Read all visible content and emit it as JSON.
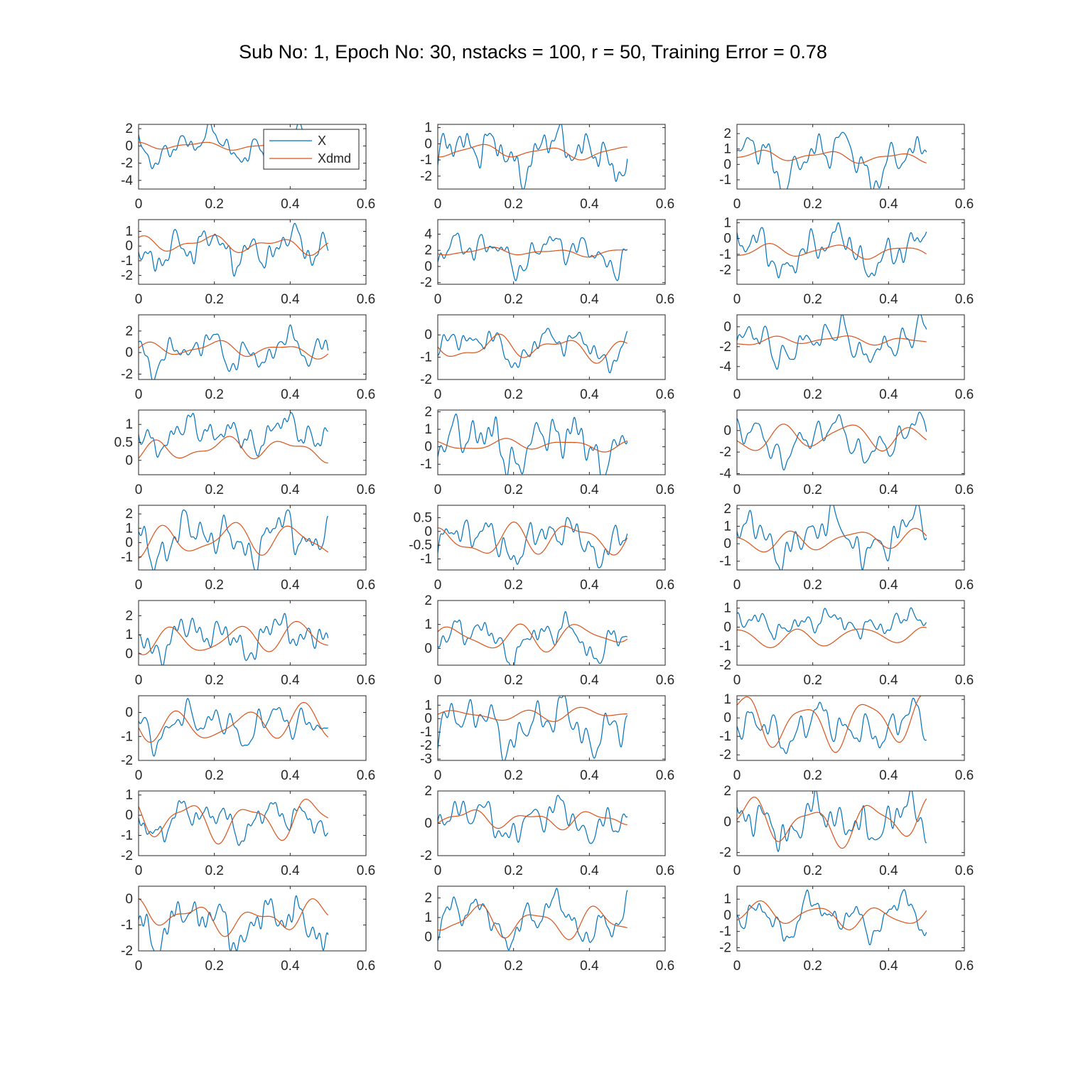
{
  "title": "Sub No: 1, Epoch No: 30, nstacks = 100, r = 50, Training Error = 0.78",
  "colors": {
    "x": "#0072BD",
    "xdmd": "#D95319",
    "axis": "#262626"
  },
  "legend": {
    "placement": "top-right of first panel",
    "labels": [
      "X",
      "Xdmd"
    ]
  },
  "chart_data": {
    "type": "line",
    "title": "Sub No: 1, Epoch No: 30, nstacks = 100, r = 50, Training Error = 0.78",
    "layout": "9 rows x 3 columns",
    "xlim": [
      0,
      0.6
    ],
    "xticks": [
      0,
      0.2,
      0.4,
      0.6
    ],
    "xtick_labels": [
      "0",
      "0.2",
      "0.4",
      "0.6"
    ],
    "x_range_of_series": [
      0,
      0.5
    ],
    "series_names": [
      "X",
      "Xdmd"
    ],
    "grid": false,
    "panels": [
      {
        "ylim": [
          -5,
          2.5
        ],
        "yticks": [
          2,
          0,
          -2,
          -4
        ],
        "ytick_labels": [
          "2",
          "0",
          "-2",
          "-4"
        ],
        "x_mean": 0.0,
        "x_amp": 1.1,
        "xdmd_mean": 0.0,
        "xdmd_amp": 0.3,
        "x_range": [
          -3.8,
          2.5
        ],
        "legend": true
      },
      {
        "ylim": [
          -2.8,
          1.2
        ],
        "yticks": [
          1,
          0,
          -1,
          -2
        ],
        "ytick_labels": [
          "1",
          "0",
          "-1",
          "-2"
        ],
        "x_mean": -0.5,
        "x_amp": 1.0,
        "xdmd_mean": -0.5,
        "xdmd_amp": 0.3,
        "x_range": [
          -2.8,
          1.2
        ]
      },
      {
        "ylim": [
          -1.6,
          2.6
        ],
        "yticks": [
          2,
          1,
          0,
          -1
        ],
        "ytick_labels": [
          "2",
          "1",
          "0",
          "-1"
        ],
        "x_mean": 0.4,
        "x_amp": 1.2,
        "xdmd_mean": 0.5,
        "xdmd_amp": 0.3,
        "x_range": [
          -1.6,
          2.6
        ]
      },
      {
        "ylim": [
          -2.6,
          1.8
        ],
        "yticks": [
          1,
          0,
          -1,
          -2
        ],
        "ytick_labels": [
          "1",
          "0",
          "-1",
          "-2"
        ],
        "x_mean": -0.2,
        "x_amp": 0.9,
        "xdmd_mean": 0.1,
        "xdmd_amp": 0.5,
        "x_range": [
          -2.6,
          1.8
        ]
      },
      {
        "ylim": [
          -2.2,
          5.8
        ],
        "yticks": [
          4,
          2,
          0,
          -2
        ],
        "ytick_labels": [
          "4",
          "2",
          "0",
          "-2"
        ],
        "x_mean": 1.8,
        "x_amp": 1.6,
        "xdmd_mean": 1.8,
        "xdmd_amp": 0.5,
        "x_range": [
          -2.2,
          5.8
        ]
      },
      {
        "ylim": [
          -2.9,
          1.2
        ],
        "yticks": [
          1,
          0,
          -1,
          -2
        ],
        "ytick_labels": [
          "1",
          "0",
          "-1",
          "-2"
        ],
        "x_mean": -0.8,
        "x_amp": 1.0,
        "xdmd_mean": -0.8,
        "xdmd_amp": 0.3,
        "x_range": [
          -2.9,
          1.2
        ]
      },
      {
        "ylim": [
          -2.5,
          3.5
        ],
        "yticks": [
          2,
          0,
          -2
        ],
        "ytick_labels": [
          "2",
          "0",
          "-2"
        ],
        "x_mean": 0.1,
        "x_amp": 1.3,
        "xdmd_mean": 0.3,
        "xdmd_amp": 0.5,
        "x_range": [
          -2.5,
          3.5
        ]
      },
      {
        "ylim": [
          -2,
          0.9
        ],
        "yticks": [
          0,
          -1,
          -2
        ],
        "ytick_labels": [
          "0",
          "-1",
          "-2"
        ],
        "x_mean": -0.5,
        "x_amp": 0.6,
        "xdmd_mean": -0.6,
        "xdmd_amp": 0.4,
        "x_range": [
          -2,
          0.9
        ]
      },
      {
        "ylim": [
          -5.3,
          1.2
        ],
        "yticks": [
          0,
          -2,
          -4
        ],
        "ytick_labels": [
          "0",
          "-2",
          "-4"
        ],
        "x_mean": -1.6,
        "x_amp": 1.2,
        "xdmd_mean": -1.4,
        "xdmd_amp": 0.4,
        "x_range": [
          -5.3,
          1.2
        ]
      },
      {
        "ylim": [
          -0.4,
          1.4
        ],
        "yticks": [
          1,
          0.5,
          0
        ],
        "ytick_labels": [
          "1",
          "0.5",
          "0"
        ],
        "x_mean": 0.75,
        "x_amp": 0.3,
        "xdmd_mean": 0.3,
        "xdmd_amp": 0.3,
        "x_range": [
          -0.4,
          1.4
        ]
      },
      {
        "ylim": [
          -1.6,
          2.1
        ],
        "yticks": [
          2,
          1,
          0,
          -1
        ],
        "ytick_labels": [
          "2",
          "1",
          "0",
          "-1"
        ],
        "x_mean": 0.2,
        "x_amp": 1.0,
        "xdmd_mean": 0.1,
        "xdmd_amp": 0.2,
        "x_range": [
          -1.6,
          2.1
        ]
      },
      {
        "ylim": [
          -4.1,
          1.9
        ],
        "yticks": [
          0,
          -2,
          -4
        ],
        "ytick_labels": [
          "0",
          "-2",
          "-4"
        ],
        "x_mean": -0.9,
        "x_amp": 1.3,
        "xdmd_mean": -0.6,
        "xdmd_amp": 0.9,
        "x_range": [
          -4.1,
          1.9
        ]
      },
      {
        "ylim": [
          -1.9,
          2.6
        ],
        "yticks": [
          2,
          1,
          0,
          -1
        ],
        "ytick_labels": [
          "2",
          "1",
          "0",
          "-1"
        ],
        "x_mean": 0.3,
        "x_amp": 1.1,
        "xdmd_mean": 0.2,
        "xdmd_amp": 0.9,
        "x_range": [
          -1.9,
          2.6
        ]
      },
      {
        "ylim": [
          -1.4,
          0.95
        ],
        "yticks": [
          0.5,
          0,
          -0.5,
          -1
        ],
        "ytick_labels": [
          "0.5",
          "0",
          "-0.5",
          "-1"
        ],
        "x_mean": -0.3,
        "x_amp": 0.5,
        "xdmd_mean": -0.3,
        "xdmd_amp": 0.5,
        "x_range": [
          -1.4,
          0.95
        ]
      },
      {
        "ylim": [
          -1.5,
          2.2
        ],
        "yticks": [
          2,
          1,
          0,
          -1
        ],
        "ytick_labels": [
          "2",
          "1",
          "0",
          "-1"
        ],
        "x_mean": 0.4,
        "x_amp": 0.9,
        "xdmd_mean": 0.2,
        "xdmd_amp": 0.6,
        "x_range": [
          -1.5,
          2.2
        ]
      },
      {
        "ylim": [
          -0.6,
          2.8
        ],
        "yticks": [
          2,
          1,
          0
        ],
        "ytick_labels": [
          "2",
          "1",
          "0"
        ],
        "x_mean": 0.9,
        "x_amp": 0.7,
        "xdmd_mean": 0.8,
        "xdmd_amp": 0.5,
        "x_range": [
          -0.6,
          2.8
        ]
      },
      {
        "ylim": [
          -0.7,
          2
        ],
        "yticks": [
          2,
          1,
          0
        ],
        "ytick_labels": [
          "2",
          "1",
          "0"
        ],
        "x_mean": 0.4,
        "x_amp": 0.6,
        "xdmd_mean": 0.5,
        "xdmd_amp": 0.4,
        "x_range": [
          -0.7,
          2
        ]
      },
      {
        "ylim": [
          -2,
          1.4
        ],
        "yticks": [
          1,
          0,
          -1,
          -2
        ],
        "ytick_labels": [
          "1",
          "0",
          "-1",
          "-2"
        ],
        "x_mean": 0.2,
        "x_amp": 0.5,
        "xdmd_mean": -0.5,
        "xdmd_amp": 0.4,
        "x_range": [
          -2,
          1.4
        ]
      },
      {
        "ylim": [
          -2,
          0.7
        ],
        "yticks": [
          0,
          -1,
          -2
        ],
        "ytick_labels": [
          "0",
          "-1",
          "-2"
        ],
        "x_mean": -0.5,
        "x_amp": 0.5,
        "xdmd_mean": -0.5,
        "xdmd_amp": 0.6,
        "x_range": [
          -2,
          0.7
        ]
      },
      {
        "ylim": [
          -3.1,
          1.7
        ],
        "yticks": [
          1,
          0,
          -1,
          -2,
          -3
        ],
        "ytick_labels": [
          "1",
          "0",
          "-1",
          "-2",
          "-3"
        ],
        "x_mean": -0.5,
        "x_amp": 1.2,
        "xdmd_mean": 0.3,
        "xdmd_amp": 0.4,
        "x_range": [
          -3.1,
          1.7
        ]
      },
      {
        "ylim": [
          -2.3,
          1.2
        ],
        "yticks": [
          1,
          0,
          -1,
          -2
        ],
        "ytick_labels": [
          "1",
          "0",
          "-1",
          "-2"
        ],
        "x_mean": -0.5,
        "x_amp": 0.9,
        "xdmd_mean": -0.2,
        "xdmd_amp": 0.9,
        "x_range": [
          -2.3,
          1.2
        ]
      },
      {
        "ylim": [
          -2,
          1.2
        ],
        "yticks": [
          1,
          0,
          -1,
          -2
        ],
        "ytick_labels": [
          "1",
          "0",
          "-1",
          "-2"
        ],
        "x_mean": -0.2,
        "x_amp": 0.6,
        "xdmd_mean": -0.2,
        "xdmd_amp": 0.7,
        "x_range": [
          -2,
          1.2
        ]
      },
      {
        "ylim": [
          -2,
          2
        ],
        "yticks": [
          2,
          0,
          -2
        ],
        "ytick_labels": [
          "2",
          "0",
          "-2"
        ],
        "x_mean": 0.2,
        "x_amp": 0.8,
        "xdmd_mean": 0.3,
        "xdmd_amp": 0.4,
        "x_range": [
          -2,
          2
        ]
      },
      {
        "ylim": [
          -2.2,
          2
        ],
        "yticks": [
          2,
          0,
          -2
        ],
        "ytick_labels": [
          "2",
          "0",
          "-2"
        ],
        "x_mean": 0.0,
        "x_amp": 1.1,
        "xdmd_mean": 0.0,
        "xdmd_amp": 1.2,
        "x_range": [
          -2.2,
          2
        ]
      },
      {
        "ylim": [
          -2,
          0.5
        ],
        "yticks": [
          0,
          -1,
          -2
        ],
        "ytick_labels": [
          "0",
          "-1",
          "-2"
        ],
        "x_mean": -0.9,
        "x_amp": 0.6,
        "xdmd_mean": -0.7,
        "xdmd_amp": 0.5,
        "x_range": [
          -2,
          0.5
        ]
      },
      {
        "ylim": [
          -0.7,
          2.6
        ],
        "yticks": [
          2,
          1,
          0
        ],
        "ytick_labels": [
          "2",
          "1",
          "0"
        ],
        "x_mean": 0.9,
        "x_amp": 0.8,
        "xdmd_mean": 0.8,
        "xdmd_amp": 0.5,
        "x_range": [
          -0.7,
          2.6
        ]
      },
      {
        "ylim": [
          -2.2,
          1.8
        ],
        "yticks": [
          1,
          0,
          -1,
          -2
        ],
        "ytick_labels": [
          "1",
          "0",
          "-1",
          "-2"
        ],
        "x_mean": -0.1,
        "x_amp": 0.9,
        "xdmd_mean": 0.0,
        "xdmd_amp": 0.5,
        "x_range": [
          -2.2,
          1.8
        ]
      }
    ]
  }
}
